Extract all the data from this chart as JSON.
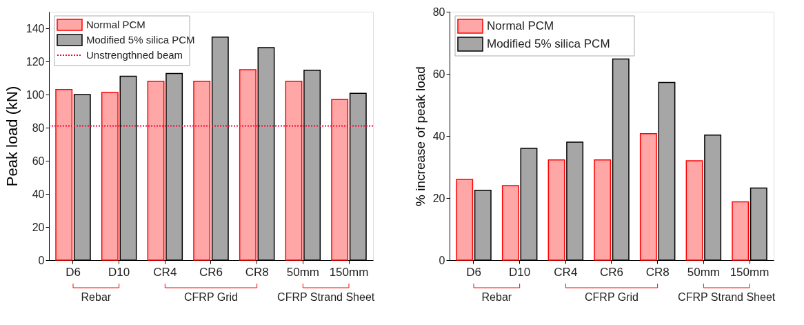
{
  "chart_data": [
    {
      "type": "bar",
      "ylabel": "Peak load (kN)",
      "categories": [
        "D6",
        "D10",
        "CR4",
        "CR6",
        "CR8",
        "50mm",
        "150mm"
      ],
      "series": [
        {
          "name": "Normal PCM",
          "color": "#ff0000",
          "values": [
            103,
            101.3,
            108,
            108,
            115,
            108,
            97
          ]
        },
        {
          "name": "Modified 5% silica PCM",
          "color": "#000000",
          "values": [
            100,
            111,
            112.7,
            134.7,
            128.3,
            114.7,
            100.7
          ]
        }
      ],
      "ylim": [
        0,
        150
      ],
      "yticks": [
        0,
        20,
        40,
        60,
        80,
        100,
        120,
        140
      ],
      "ref_lines": [
        {
          "axis": "y",
          "value": 81,
          "label": "Unstrengthned beam",
          "color": "#ff0033",
          "line_style": "dotted"
        }
      ],
      "annotations": [
        "Rebar",
        "CFRP Grid",
        "CFRP Strand Sheet"
      ],
      "legend": "top left",
      "grid": false
    },
    {
      "type": "bar",
      "ylabel": "% increase of peak load",
      "categories": [
        "D6",
        "D10",
        "CR4",
        "CR6",
        "CR8",
        "50mm",
        "150mm"
      ],
      "series": [
        {
          "name": "Normal PCM",
          "color": "#ff0000",
          "values": [
            26,
            24,
            32.3,
            32.3,
            40.7,
            32,
            18.8
          ]
        },
        {
          "name": "Modified 5% silica PCM",
          "color": "#000000",
          "values": [
            22.5,
            36,
            38,
            64.8,
            57.2,
            40.3,
            23.2
          ]
        }
      ],
      "ylim": [
        0,
        80
      ],
      "yticks": [
        0,
        20,
        40,
        60,
        80
      ],
      "annotations": [
        "Rebar",
        "CFRP Grid",
        "CFRP Strand Sheet"
      ],
      "legend": "top left",
      "grid": false
    }
  ]
}
